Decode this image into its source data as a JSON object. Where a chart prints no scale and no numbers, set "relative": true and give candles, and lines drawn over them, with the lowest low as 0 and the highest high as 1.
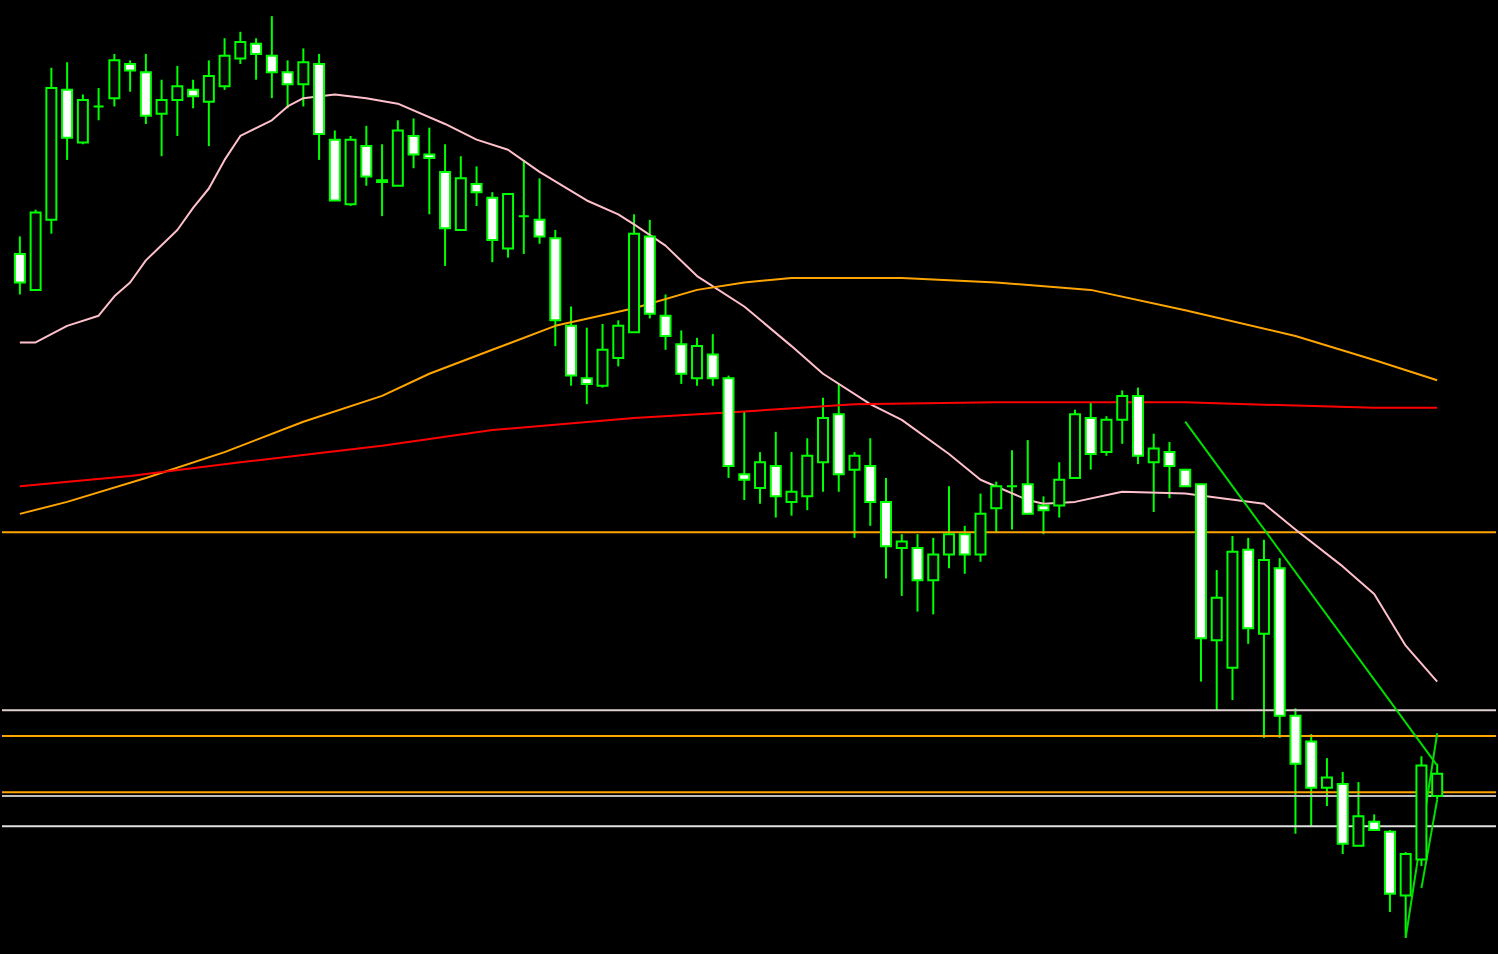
{
  "chart_data": {
    "type": "candlestick",
    "relative": true,
    "color": "#00ff00",
    "categories": [
      null,
      null,
      null,
      null,
      null,
      null,
      null,
      null,
      null,
      null,
      null,
      null,
      null,
      null,
      null,
      null,
      null,
      null,
      null,
      null,
      null,
      null,
      null,
      null,
      null,
      null,
      null,
      null,
      null,
      null,
      null,
      null,
      null,
      null,
      null,
      null,
      null,
      null,
      null,
      null,
      null,
      null,
      null,
      null,
      null,
      null,
      null,
      null,
      null,
      null,
      null,
      null,
      null,
      null,
      null,
      null,
      null,
      null,
      null,
      null,
      null,
      null,
      null,
      null,
      null,
      null,
      null,
      null,
      null,
      null,
      null,
      null,
      null,
      null,
      null,
      null,
      null,
      null,
      null,
      null,
      null,
      null,
      null,
      null,
      null,
      null,
      null,
      null,
      null,
      null,
      null
    ],
    "ohlc": [
      [
        0.742,
        0.761,
        0.698,
        0.711
      ],
      [
        0.703,
        0.79,
        0.703,
        0.787
      ],
      [
        0.779,
        0.944,
        0.764,
        0.922
      ],
      [
        0.92,
        0.95,
        0.844,
        0.868
      ],
      [
        0.863,
        0.915,
        0.861,
        0.909
      ],
      [
        0.902,
        0.922,
        0.887,
        0.902
      ],
      [
        0.911,
        0.959,
        0.902,
        0.952
      ],
      [
        0.948,
        0.952,
        0.918,
        0.941
      ],
      [
        0.939,
        0.959,
        0.883,
        0.892
      ],
      [
        0.894,
        0.931,
        0.848,
        0.909
      ],
      [
        0.909,
        0.946,
        0.87,
        0.924
      ],
      [
        0.92,
        0.931,
        0.9,
        0.913
      ],
      [
        0.907,
        0.952,
        0.859,
        0.935
      ],
      [
        0.924,
        0.976,
        0.92,
        0.957
      ],
      [
        0.954,
        0.983,
        0.948,
        0.972
      ],
      [
        0.97,
        0.976,
        0.931,
        0.959
      ],
      [
        0.957,
        1.0,
        0.911,
        0.939
      ],
      [
        0.939,
        0.952,
        0.9,
        0.926
      ],
      [
        0.926,
        0.965,
        0.902,
        0.95
      ],
      [
        0.948,
        0.959,
        0.844,
        0.872
      ],
      [
        0.866,
        0.876,
        0.8,
        0.8
      ],
      [
        0.796,
        0.87,
        0.794,
        0.866
      ],
      [
        0.859,
        0.881,
        0.816,
        0.826
      ],
      [
        0.822,
        0.861,
        0.783,
        0.82
      ],
      [
        0.816,
        0.887,
        0.816,
        0.876
      ],
      [
        0.87,
        0.889,
        0.835,
        0.85
      ],
      [
        0.85,
        0.879,
        0.785,
        0.846
      ],
      [
        0.831,
        0.861,
        0.729,
        0.77
      ],
      [
        0.768,
        0.848,
        0.768,
        0.824
      ],
      [
        0.818,
        0.837,
        0.794,
        0.809
      ],
      [
        0.803,
        0.809,
        0.733,
        0.757
      ],
      [
        0.748,
        0.807,
        0.738,
        0.807
      ],
      [
        0.783,
        0.844,
        0.742,
        0.783
      ],
      [
        0.779,
        0.824,
        0.753,
        0.761
      ],
      [
        0.759,
        0.768,
        0.642,
        0.67
      ],
      [
        0.664,
        0.685,
        0.599,
        0.61
      ],
      [
        0.607,
        0.662,
        0.579,
        0.601
      ],
      [
        0.599,
        0.666,
        0.597,
        0.638
      ],
      [
        0.629,
        0.67,
        0.62,
        0.664
      ],
      [
        0.657,
        0.785,
        0.657,
        0.764
      ],
      [
        0.761,
        0.779,
        0.672,
        0.677
      ],
      [
        0.675,
        0.698,
        0.638,
        0.653
      ],
      [
        0.644,
        0.659,
        0.601,
        0.612
      ],
      [
        0.607,
        0.651,
        0.599,
        0.642
      ],
      [
        0.633,
        0.655,
        0.599,
        0.607
      ],
      [
        0.607,
        0.61,
        0.499,
        0.512
      ],
      [
        0.503,
        0.571,
        0.475,
        0.497
      ],
      [
        0.488,
        0.527,
        0.471,
        0.516
      ],
      [
        0.512,
        0.549,
        0.456,
        0.479
      ],
      [
        0.473,
        0.527,
        0.458,
        0.484
      ],
      [
        0.479,
        0.542,
        0.464,
        0.523
      ],
      [
        0.516,
        0.586,
        0.484,
        0.564
      ],
      [
        0.568,
        0.601,
        0.484,
        0.503
      ],
      [
        0.508,
        0.527,
        0.434,
        0.523
      ],
      [
        0.512,
        0.542,
        0.447,
        0.473
      ],
      [
        0.473,
        0.499,
        0.39,
        0.425
      ],
      [
        0.423,
        0.438,
        0.371,
        0.43
      ],
      [
        0.423,
        0.438,
        0.354,
        0.388
      ],
      [
        0.388,
        0.434,
        0.351,
        0.416
      ],
      [
        0.416,
        0.49,
        0.401,
        0.438
      ],
      [
        0.438,
        0.447,
        0.395,
        0.416
      ],
      [
        0.416,
        0.482,
        0.408,
        0.46
      ],
      [
        0.466,
        0.495,
        0.44,
        0.49
      ],
      [
        0.49,
        0.529,
        0.443,
        0.49
      ],
      [
        0.492,
        0.54,
        0.46,
        0.46
      ],
      [
        0.469,
        0.479,
        0.438,
        0.464
      ],
      [
        0.469,
        0.516,
        0.456,
        0.497
      ],
      [
        0.499,
        0.573,
        0.499,
        0.568
      ],
      [
        0.564,
        0.581,
        0.508,
        0.525
      ],
      [
        0.527,
        0.566,
        0.523,
        0.562
      ],
      [
        0.562,
        0.594,
        0.536,
        0.588
      ],
      [
        0.588,
        0.597,
        0.514,
        0.523
      ],
      [
        0.516,
        0.547,
        0.462,
        0.531
      ],
      [
        0.527,
        0.538,
        0.477,
        0.512
      ],
      [
        0.508,
        0.508,
        0.49,
        0.49
      ],
      [
        0.492,
        0.492,
        0.278,
        0.325
      ],
      [
        0.323,
        0.399,
        0.247,
        0.369
      ],
      [
        0.293,
        0.436,
        0.258,
        0.419
      ],
      [
        0.421,
        0.434,
        0.319,
        0.336
      ],
      [
        0.33,
        0.432,
        0.217,
        0.41
      ],
      [
        0.401,
        0.412,
        0.217,
        0.241
      ],
      [
        0.241,
        0.249,
        0.113,
        0.189
      ],
      [
        0.213,
        0.221,
        0.121,
        0.163
      ],
      [
        0.163,
        0.195,
        0.143,
        0.174
      ],
      [
        0.167,
        0.18,
        0.091,
        0.102
      ],
      [
        0.1,
        0.169,
        0.1,
        0.132
      ],
      [
        0.126,
        0.134,
        0.117,
        0.117
      ],
      [
        0.115,
        0.117,
        0.028,
        0.048
      ],
      [
        0.046,
        0.093,
        0.0,
        0.091
      ],
      [
        0.085,
        0.197,
        0.078,
        0.187
      ],
      [
        0.154,
        0.189,
        0.15,
        0.178
      ]
    ],
    "colors": [
      "#ffffff",
      "#080808",
      "#080808",
      "#ffffff",
      "#080808",
      "#00ff00",
      "#080808",
      "#ffffff",
      "#ffffff",
      "#080808",
      "#080808",
      "#ffffff",
      "#080808",
      "#080808",
      "#080808",
      "#ffffff",
      "#ffffff",
      "#ffffff",
      "#080808",
      "#ffffff",
      "#ffffff",
      "#080808",
      "#ffffff",
      "#ffffff",
      "#080808",
      "#ffffff",
      "#ffffff",
      "#ffffff",
      "#080808",
      "#ffffff",
      "#ffffff",
      "#080808",
      "#00ff00",
      "#ffffff",
      "#ffffff",
      "#ffffff",
      "#ffffff",
      "#080808",
      "#080808",
      "#080808",
      "#ffffff",
      "#ffffff",
      "#ffffff",
      "#080808",
      "#ffffff",
      "#ffffff",
      "#ffffff",
      "#080808",
      "#ffffff",
      "#080808",
      "#080808",
      "#080808",
      "#ffffff",
      "#080808",
      "#ffffff",
      "#ffffff",
      "#080808",
      "#ffffff",
      "#080808",
      "#080808",
      "#ffffff",
      "#080808",
      "#080808",
      "#00ff00",
      "#ffffff",
      "#ffffff",
      "#080808",
      "#080808",
      "#ffffff",
      "#080808",
      "#080808",
      "#ffffff",
      "#080808",
      "#ffffff",
      "#ffffff",
      "#ffffff",
      "#080808",
      "#080808",
      "#ffffff",
      "#080808",
      "#ffffff",
      "#ffffff",
      "#ffffff",
      "#080808",
      "#ffffff",
      "#080808",
      "#ffffff",
      "#ffffff",
      "#080808",
      "#080808",
      "#080808"
    ],
    "series": [
      {
        "type": "line",
        "color": "#ffc0cb",
        "values": [
          0.646,
          0.646,
          null,
          0.664,
          null,
          0.675,
          0.696,
          0.711,
          0.735,
          null,
          0.768,
          0.792,
          0.813,
          0.844,
          0.87,
          null,
          0.887,
          0.902,
          0.911,
          null,
          0.915,
          null,
          0.911,
          null,
          0.905,
          null,
          null,
          0.883,
          null,
          0.866,
          null,
          0.855,
          null,
          0.831,
          null,
          null,
          0.8,
          null,
          0.785,
          0.774,
          null,
          0.751,
          null,
          0.718,
          null,
          null,
          0.685,
          null,
          null,
          0.642,
          null,
          0.612,
          null,
          null,
          0.579,
          null,
          0.562,
          null,
          null,
          0.525,
          null,
          0.497,
          null,
          null,
          0.475,
          0.471,
          null,
          0.473,
          null,
          null,
          0.484,
          null,
          null,
          null,
          0.482,
          null,
          null,
          null,
          null,
          0.471,
          null,
          0.443,
          null,
          null,
          0.403,
          null,
          0.373,
          null,
          0.317,
          null,
          0.278
        ]
      },
      {
        "type": "line",
        "color": "#ffa500",
        "values": [
          0.46,
          null,
          null,
          0.473,
          null,
          null,
          null,
          null,
          0.499,
          null,
          null,
          null,
          null,
          0.527,
          null,
          null,
          null,
          null,
          0.56,
          null,
          null,
          null,
          null,
          0.588,
          null,
          null,
          0.612,
          null,
          null,
          null,
          0.638,
          null,
          null,
          null,
          0.664,
          null,
          null,
          null,
          null,
          0.683,
          null,
          null,
          null,
          0.703,
          null,
          null,
          0.711,
          null,
          null,
          0.716,
          null,
          null,
          null,
          null,
          null,
          null,
          0.716,
          null,
          null,
          null,
          null,
          null,
          0.711,
          null,
          null,
          null,
          null,
          null,
          0.703,
          null,
          null,
          null,
          null,
          null,
          0.681,
          null,
          null,
          null,
          null,
          null,
          null,
          0.653,
          null,
          null,
          null,
          null,
          0.627,
          null,
          null,
          null,
          0.605
        ]
      },
      {
        "type": "line",
        "color": "#ff0000",
        "values": [
          0.49,
          null,
          null,
          null,
          null,
          null,
          null,
          0.501,
          null,
          null,
          null,
          null,
          null,
          null,
          0.516,
          null,
          null,
          null,
          null,
          null,
          null,
          null,
          null,
          0.534,
          null,
          null,
          null,
          null,
          null,
          null,
          0.551,
          null,
          null,
          null,
          null,
          null,
          null,
          null,
          null,
          0.564,
          null,
          null,
          null,
          null,
          null,
          null,
          0.571,
          null,
          null,
          null,
          null,
          null,
          null,
          0.579,
          null,
          null,
          null,
          null,
          null,
          null,
          null,
          null,
          0.581,
          null,
          null,
          null,
          null,
          null,
          null,
          null,
          null,
          null,
          null,
          null,
          0.581,
          null,
          null,
          null,
          null,
          null,
          null,
          null,
          null,
          null,
          null,
          null,
          0.575,
          null,
          null,
          null,
          0.575
        ]
      },
      {
        "type": "line",
        "color": "#00e000",
        "values": [
          null,
          null,
          null,
          null,
          null,
          null,
          null,
          null,
          null,
          null,
          null,
          null,
          null,
          null,
          null,
          null,
          null,
          null,
          null,
          null,
          null,
          null,
          null,
          null,
          null,
          null,
          null,
          null,
          null,
          null,
          null,
          null,
          null,
          null,
          null,
          null,
          null,
          null,
          null,
          null,
          null,
          null,
          null,
          null,
          null,
          null,
          null,
          null,
          null,
          null,
          null,
          null,
          null,
          null,
          null,
          null,
          null,
          null,
          null,
          null,
          null,
          null,
          null,
          null,
          null,
          null,
          null,
          null,
          null,
          null,
          null,
          null,
          null,
          null,
          0.56,
          null,
          null,
          null,
          null,
          null,
          null,
          null,
          null,
          null,
          null,
          null,
          null,
          null,
          null,
          null,
          0.187
        ]
      },
      {
        "type": "line",
        "color": "#00e000",
        "values": [
          null,
          null,
          null,
          null,
          null,
          null,
          null,
          null,
          null,
          null,
          null,
          null,
          null,
          null,
          null,
          null,
          null,
          null,
          null,
          null,
          null,
          null,
          null,
          null,
          null,
          null,
          null,
          null,
          null,
          null,
          null,
          null,
          null,
          null,
          null,
          null,
          null,
          null,
          null,
          null,
          null,
          null,
          null,
          null,
          null,
          null,
          null,
          null,
          null,
          null,
          null,
          null,
          null,
          null,
          null,
          null,
          null,
          null,
          null,
          null,
          null,
          null,
          null,
          null,
          null,
          null,
          null,
          null,
          null,
          null,
          null,
          null,
          null,
          null,
          null,
          null,
          null,
          null,
          null,
          null,
          null,
          null,
          null,
          null,
          null,
          null,
          null,
          null,
          0.0,
          null,
          0.222
        ]
      },
      {
        "type": "line",
        "color": "#00e000",
        "values": [
          null,
          null,
          null,
          null,
          null,
          null,
          null,
          null,
          null,
          null,
          null,
          null,
          null,
          null,
          null,
          null,
          null,
          null,
          null,
          null,
          null,
          null,
          null,
          null,
          null,
          null,
          null,
          null,
          null,
          null,
          null,
          null,
          null,
          null,
          null,
          null,
          null,
          null,
          null,
          null,
          null,
          null,
          null,
          null,
          null,
          null,
          null,
          null,
          null,
          null,
          null,
          null,
          null,
          null,
          null,
          null,
          null,
          null,
          null,
          null,
          null,
          null,
          null,
          null,
          null,
          null,
          null,
          null,
          null,
          null,
          null,
          null,
          null,
          null,
          null,
          null,
          null,
          null,
          null,
          null,
          null,
          null,
          null,
          null,
          null,
          null,
          null,
          null,
          null,
          0.054,
          0.15
        ]
      }
    ],
    "ref_lines": [
      {
        "axis": "y",
        "value": 0.44,
        "color": "#ffa500"
      },
      {
        "axis": "y",
        "value": 0.247,
        "color": "#e0d0d0"
      },
      {
        "axis": "y",
        "value": 0.219,
        "color": "#ffa500"
      },
      {
        "axis": "y",
        "value": 0.158,
        "color": "#ffa500"
      },
      {
        "axis": "y",
        "value": 0.154,
        "color": "#c0c0c0"
      },
      {
        "axis": "y",
        "value": 0.121,
        "color": "#e0e0e0"
      }
    ]
  }
}
